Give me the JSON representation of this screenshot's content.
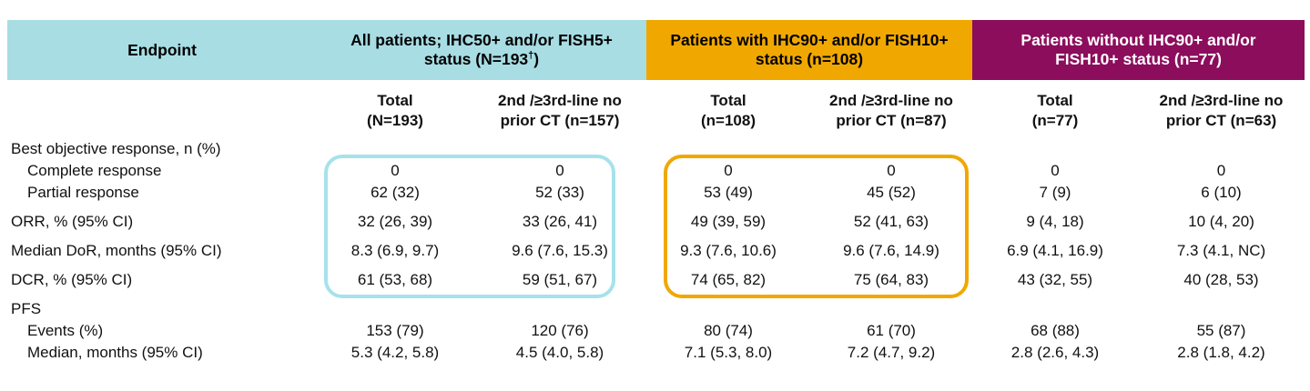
{
  "table": {
    "endpoint_header": "Endpoint",
    "groups": [
      {
        "title_pre": "All patients; IHC50+ and/or FISH5+ status (N=193",
        "title_sup": "†",
        "title_post": ")",
        "bg": "#A8DDE4",
        "fg": "#000000"
      },
      {
        "title": "Patients with IHC90+ and/or FISH10+ status (n=108)",
        "bg": "#F0A800",
        "fg": "#000000"
      },
      {
        "title": "Patients without IHC90+ and/or FISH10+ status (n=77)",
        "bg": "#8C0D5C",
        "fg": "#FFFFFF"
      }
    ],
    "subheaders": [
      {
        "line1": "Total",
        "line2": "(N=193)"
      },
      {
        "line1": "2nd /≥3rd-line no",
        "line2": "prior CT (n=157)"
      },
      {
        "line1": "Total",
        "line2": "(n=108)"
      },
      {
        "line1": "2nd /≥3rd-line no",
        "line2": "prior CT (n=87)"
      },
      {
        "line1": "Total",
        "line2": "(n=77)"
      },
      {
        "line1": "2nd /≥3rd-line no",
        "line2": "prior CT (n=63)"
      }
    ],
    "rows": [
      {
        "label": "Best objective response, n (%)",
        "indent": false,
        "gap_before": false,
        "values": [
          "",
          "",
          "",
          "",
          "",
          ""
        ]
      },
      {
        "label": "Complete response",
        "indent": true,
        "gap_before": false,
        "values": [
          "0",
          "0",
          "0",
          "0",
          "0",
          "0"
        ]
      },
      {
        "label": "Partial response",
        "indent": true,
        "gap_before": false,
        "values": [
          "62 (32)",
          "52 (33)",
          "53 (49)",
          "45 (52)",
          "7 (9)",
          "6 (10)"
        ]
      },
      {
        "label": "ORR, % (95% CI)",
        "indent": false,
        "gap_before": true,
        "values": [
          "32 (26, 39)",
          "33 (26, 41)",
          "49 (39, 59)",
          "52 (41, 63)",
          "9 (4, 18)",
          "10 (4, 20)"
        ]
      },
      {
        "label": "Median DoR, months (95% CI)",
        "indent": false,
        "gap_before": true,
        "values": [
          "8.3 (6.9, 9.7)",
          "9.6 (7.6, 15.3)",
          "9.3 (7.6, 10.6)",
          "9.6 (7.6, 14.9)",
          "6.9 (4.1, 16.9)",
          "7.3 (4.1, NC)"
        ]
      },
      {
        "label": "DCR, % (95% CI)",
        "indent": false,
        "gap_before": true,
        "values": [
          "61 (53, 68)",
          "59 (51, 67)",
          "74 (65, 82)",
          "75 (64, 83)",
          "43 (32, 55)",
          "40 (28, 53)"
        ]
      },
      {
        "label": "PFS",
        "indent": false,
        "gap_before": true,
        "values": [
          "",
          "",
          "",
          "",
          "",
          ""
        ]
      },
      {
        "label": "Events (%)",
        "indent": true,
        "gap_before": false,
        "values": [
          "153 (79)",
          "120 (76)",
          "80 (74)",
          "61 (70)",
          "68 (88)",
          "55 (87)"
        ]
      },
      {
        "label": "Median, months (95% CI)",
        "indent": true,
        "gap_before": false,
        "values": [
          "5.3 (4.2, 5.8)",
          "4.5 (4.0, 5.8)",
          "7.1 (5.3, 8.0)",
          "7.2 (4.7, 9.2)",
          "2.8 (2.6, 4.3)",
          "2.8 (1.8, 4.2)"
        ]
      }
    ],
    "highlight_boxes": [
      {
        "name": "all-patients-box",
        "color": "#A6E2EC"
      },
      {
        "name": "ihc90-pos-box",
        "color": "#F0A800"
      }
    ]
  }
}
